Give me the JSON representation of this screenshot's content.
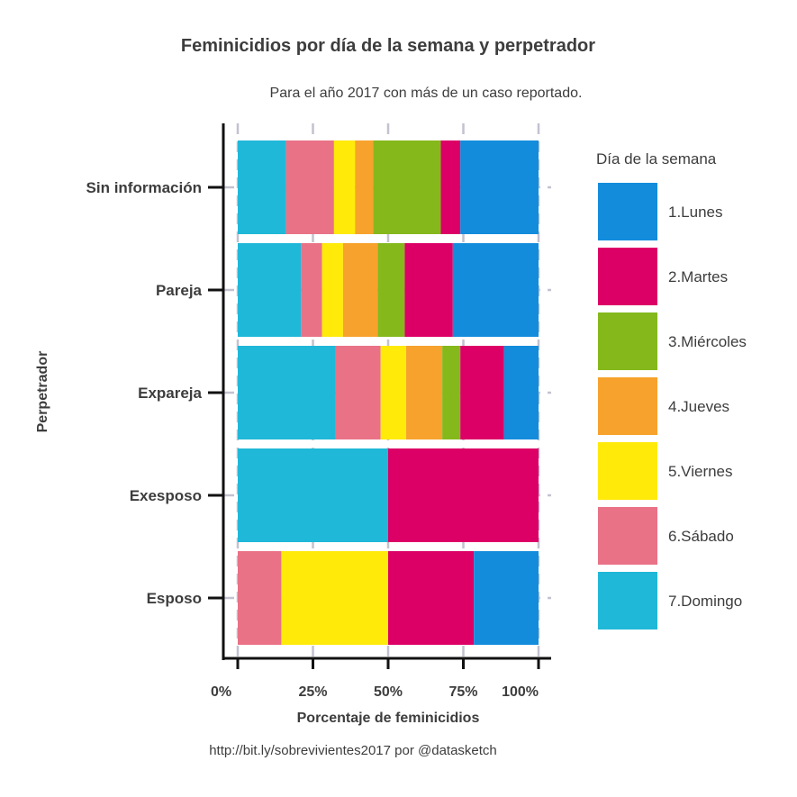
{
  "chart_data": {
    "type": "bar",
    "orientation": "horizontal",
    "stacked": true,
    "title": "Feminicidios por día de la semana y perpetrador",
    "subtitle": "Para el año 2017 con más de un caso reportado.",
    "xlabel": "Porcentaje de feminicidios",
    "ylabel": "Perpetrador",
    "caption": "http://bit.ly/sobrevivientes2017 por @datasketch",
    "xlim": [
      0,
      100
    ],
    "x_ticks": [
      "0%",
      "25%",
      "50%",
      "75%",
      "100%"
    ],
    "categories": [
      "Sin información",
      "Pareja",
      "Expareja",
      "Exesposo",
      "Esposo"
    ],
    "legend_title": "Día de la semana",
    "legend_position": "right",
    "grid": true,
    "series": [
      {
        "name": "7.Domingo",
        "color": "#20b8d8",
        "values": [
          16,
          21,
          32.5,
          50,
          0
        ]
      },
      {
        "name": "6.Sábado",
        "color": "#e97286",
        "values": [
          16,
          7,
          15,
          0,
          14.5
        ]
      },
      {
        "name": "5.Viernes",
        "color": "#ffea0a",
        "values": [
          7,
          7,
          8.5,
          0,
          35.5
        ]
      },
      {
        "name": "4.Jueves",
        "color": "#f7a22c",
        "values": [
          6,
          11.5,
          12,
          0,
          0
        ]
      },
      {
        "name": "3.Miércoles",
        "color": "#85b81b",
        "values": [
          22.5,
          9,
          6,
          0,
          0
        ]
      },
      {
        "name": "2.Martes",
        "color": "#dc0066",
        "values": [
          6.5,
          16,
          14.5,
          50,
          28.5
        ]
      },
      {
        "name": "1.Lunes",
        "color": "#138cdc",
        "values": [
          26,
          28.5,
          11.5,
          0,
          21.5
        ]
      }
    ]
  }
}
